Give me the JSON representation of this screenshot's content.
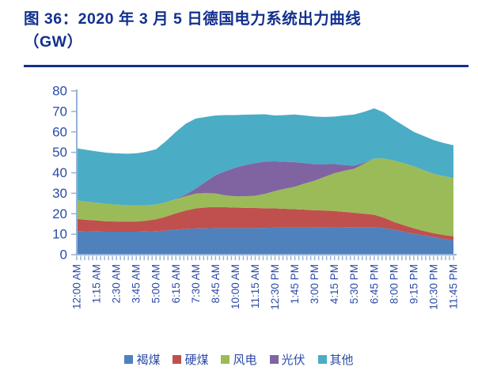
{
  "figure": {
    "title_line1": "图 36：2020 年 3 月 5 日德国电力系统出力曲线",
    "title_line2": "（GW）"
  },
  "chart_data": {
    "type": "area",
    "stacked": true,
    "title": "2020年3月5日德国电力系统出力曲线（GW）",
    "xlabel": "",
    "ylabel": "GW",
    "ylim": [
      0,
      80
    ],
    "y_ticks": [
      0,
      10,
      20,
      30,
      40,
      50,
      60,
      70,
      80
    ],
    "grid": false,
    "legend_position": "bottom",
    "axis_color": "#95B3D7",
    "label_color": "#2B4BA8",
    "x_tick_labels": [
      "12:00 AM",
      "1:15 AM",
      "2:30 AM",
      "3:45 AM",
      "5:00 AM",
      "6:15 AM",
      "7:30 AM",
      "8:45 AM",
      "10:00 AM",
      "11:15 AM",
      "12:30 PM",
      "1:45 PM",
      "3:00 PM",
      "4:15 PM",
      "5:30 PM",
      "6:45 PM",
      "8:00 PM",
      "9:15 PM",
      "10:30 PM",
      "11:45 PM"
    ],
    "points_per_tick": 2,
    "minor_x_ticks": 96,
    "series": [
      {
        "key": "lignite",
        "name": "褐煤",
        "color": "#4F81BD",
        "values": [
          11.5,
          11.4,
          11.3,
          11.2,
          11.2,
          11.2,
          11.2,
          11.3,
          11.5,
          11.8,
          12.2,
          12.6,
          12.8,
          12.9,
          13.0,
          13.0,
          13.0,
          13.0,
          13.0,
          13.1,
          13.2,
          13.2,
          13.2,
          13.2,
          13.2,
          13.3,
          13.3,
          13.4,
          13.5,
          13.5,
          13.5,
          13.0,
          12.2,
          11.2,
          10.3,
          9.4,
          8.6,
          7.7,
          7.0
        ]
      },
      {
        "key": "hard-coal",
        "name": "硬煤",
        "color": "#C0504D",
        "values": [
          6.0,
          5.6,
          5.4,
          5.1,
          5.0,
          5.0,
          5.0,
          5.3,
          5.8,
          6.8,
          8.0,
          9.0,
          9.8,
          10.2,
          10.3,
          10.2,
          10.0,
          9.9,
          9.8,
          9.6,
          9.4,
          9.2,
          9.0,
          8.8,
          8.5,
          8.3,
          8.0,
          7.5,
          7.0,
          6.5,
          6.0,
          5.0,
          3.8,
          3.2,
          2.6,
          2.2,
          1.9,
          1.9,
          2.0
        ]
      },
      {
        "key": "wind",
        "name": "风电",
        "color": "#9BBB59",
        "values": [
          9.0,
          8.9,
          8.7,
          8.5,
          8.3,
          8.0,
          7.8,
          7.5,
          7.2,
          7.0,
          6.9,
          7.0,
          7.2,
          7.0,
          6.6,
          5.8,
          5.5,
          5.6,
          6.0,
          7.0,
          8.5,
          9.8,
          11.0,
          12.8,
          14.5,
          16.4,
          18.5,
          20.1,
          21.5,
          24.5,
          27.5,
          29.0,
          30.0,
          30.3,
          30.3,
          29.7,
          29.0,
          28.8,
          28.5
        ]
      },
      {
        "key": "solar",
        "name": "光伏",
        "color": "#8064A2",
        "values": [
          0,
          0,
          0,
          0,
          0,
          0,
          0,
          0,
          0,
          0,
          0.1,
          0.8,
          2.5,
          5.5,
          9.0,
          11.8,
          14.0,
          15.3,
          16.0,
          15.8,
          14.5,
          13.2,
          12.0,
          10.0,
          8.0,
          6.2,
          4.5,
          2.8,
          1.5,
          0.5,
          0,
          0,
          0,
          0,
          0,
          0,
          0,
          0,
          0
        ]
      },
      {
        "key": "other",
        "name": "其他",
        "color": "#4BACC6",
        "values": [
          25.5,
          25.3,
          25.1,
          25.0,
          25.0,
          25.1,
          25.5,
          26.2,
          27.0,
          29.9,
          32.8,
          34.6,
          34.2,
          31.7,
          29.1,
          27.4,
          25.7,
          24.6,
          23.7,
          23.1,
          22.4,
          22.8,
          23.3,
          23.2,
          23.3,
          23.1,
          23.2,
          24.2,
          25.0,
          24.8,
          24.5,
          22.5,
          20.0,
          18.3,
          16.8,
          16.7,
          16.5,
          16.2,
          16.0
        ]
      }
    ]
  }
}
